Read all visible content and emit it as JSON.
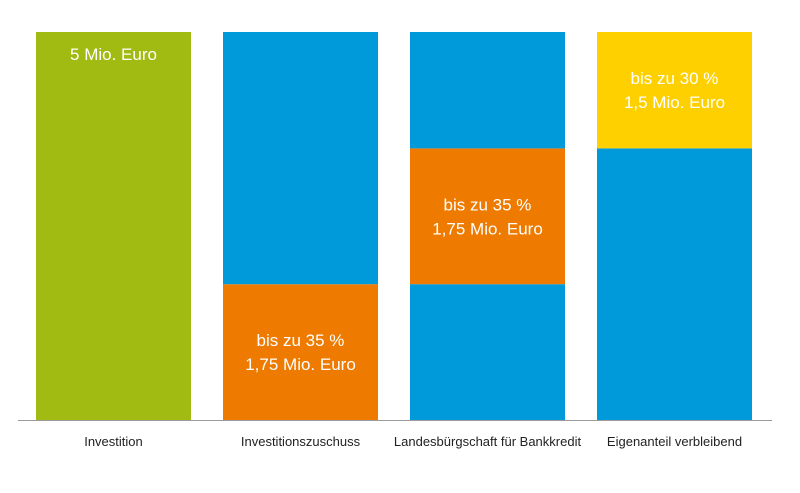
{
  "chart_data": {
    "type": "bar",
    "stacked": true,
    "categories": [
      "Investition",
      "Investitionszuschuss",
      "Landesbürgschaft für Bankkredit",
      "Eigenanteil verbleibend"
    ],
    "total": 5,
    "bars": [
      {
        "category": "Investition",
        "segments": [
          {
            "from": 0,
            "to": 5,
            "color": "#a2bb12",
            "lines": [
              "5 Mio. Euro"
            ],
            "label_anchor": "top"
          }
        ]
      },
      {
        "category": "Investitionszuschuss",
        "segments": [
          {
            "from": 0,
            "to": 1.75,
            "color": "#ee7a00",
            "lines": [
              "bis zu 35 %",
              "1,75 Mio. Euro"
            ],
            "label_anchor": "middle"
          },
          {
            "from": 1.75,
            "to": 5,
            "color": "#0099d9",
            "lines": []
          }
        ]
      },
      {
        "category": "Landesbürgschaft für Bankkredit",
        "segments": [
          {
            "from": 0,
            "to": 1.75,
            "color": "#0099d9",
            "lines": []
          },
          {
            "from": 1.75,
            "to": 3.5,
            "color": "#ee7a00",
            "lines": [
              "bis zu 35 %",
              "1,75 Mio. Euro"
            ],
            "label_anchor": "middle"
          },
          {
            "from": 3.5,
            "to": 5,
            "color": "#0099d9",
            "lines": []
          }
        ]
      },
      {
        "category": "Eigenanteil verbleibend",
        "segments": [
          {
            "from": 0,
            "to": 3.5,
            "color": "#0099d9",
            "lines": []
          },
          {
            "from": 3.5,
            "to": 5,
            "color": "#ffd000",
            "lines": [
              "bis zu 30 %",
              "1,5 Mio. Euro"
            ],
            "label_anchor": "middle"
          }
        ]
      }
    ],
    "baseline_color": "#9a9a9a"
  }
}
